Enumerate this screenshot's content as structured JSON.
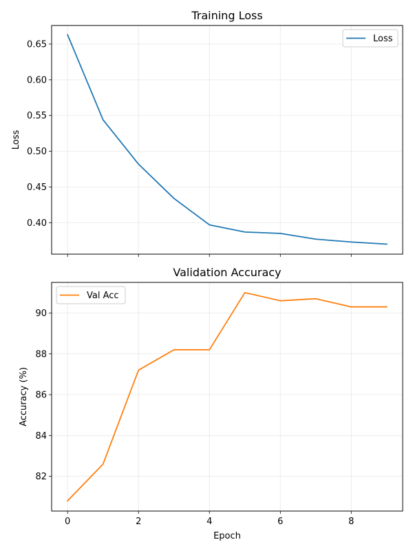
{
  "chart_data": [
    {
      "type": "line",
      "title": "Training Loss",
      "xlabel": "",
      "ylabel": "Loss",
      "x": [
        0,
        1,
        2,
        3,
        4,
        5,
        6,
        7,
        8,
        9
      ],
      "xlim": [
        -0.45,
        9.45
      ],
      "ylim": [
        0.356,
        0.676
      ],
      "xticks": [
        0,
        2,
        4,
        6,
        8
      ],
      "xtick_labels_visible": false,
      "yticks": [
        0.4,
        0.45,
        0.5,
        0.55,
        0.6,
        0.65
      ],
      "ytick_labels": [
        "0.40",
        "0.45",
        "0.50",
        "0.55",
        "0.60",
        "0.65"
      ],
      "grid": true,
      "legend_position": "top-right",
      "series": [
        {
          "name": "Loss",
          "color": "#1f77b4",
          "values": [
            0.663,
            0.544,
            0.482,
            0.434,
            0.397,
            0.387,
            0.385,
            0.377,
            0.373,
            0.37
          ]
        }
      ]
    },
    {
      "type": "line",
      "title": "Validation Accuracy",
      "xlabel": "Epoch",
      "ylabel": "Accuracy (%)",
      "x": [
        0,
        1,
        2,
        3,
        4,
        5,
        6,
        7,
        8,
        9
      ],
      "xlim": [
        -0.45,
        9.45
      ],
      "ylim": [
        80.3,
        91.5
      ],
      "xticks": [
        0,
        2,
        4,
        6,
        8
      ],
      "xtick_labels_visible": true,
      "xtick_labels": [
        "0",
        "2",
        "4",
        "6",
        "8"
      ],
      "yticks": [
        82,
        84,
        86,
        88,
        90
      ],
      "ytick_labels": [
        "82",
        "84",
        "86",
        "88",
        "90"
      ],
      "grid": true,
      "legend_position": "top-left",
      "series": [
        {
          "name": "Val Acc",
          "color": "#ff7f0e",
          "values": [
            80.8,
            82.6,
            87.2,
            88.2,
            88.2,
            91.0,
            90.6,
            90.7,
            90.3,
            90.3
          ]
        }
      ]
    }
  ]
}
